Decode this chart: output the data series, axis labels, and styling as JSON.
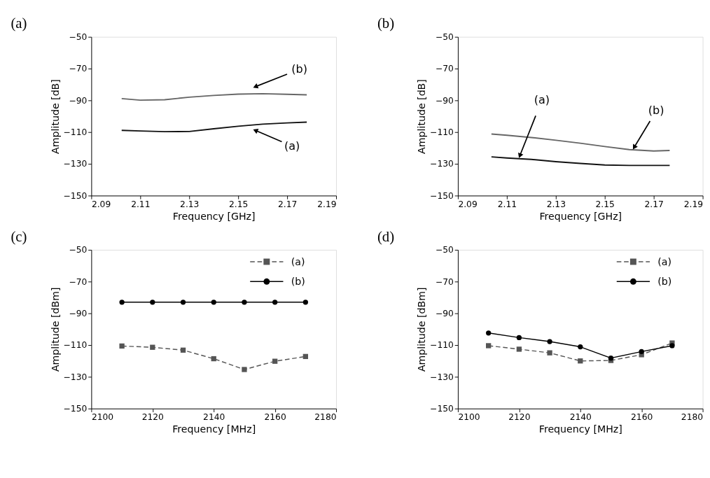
{
  "chart_data": [
    {
      "type": "line",
      "title": "(a)",
      "xlabel": "Frequency [GHz]",
      "ylabel": "Amplitude [dB]",
      "xlim": [
        2.09,
        2.19
      ],
      "ylim": [
        -150,
        -50
      ],
      "xticks": [
        2.09,
        2.11,
        2.13,
        2.15,
        2.17,
        2.19
      ],
      "yticks": [
        -150,
        -130,
        -110,
        -90,
        -70,
        -50
      ],
      "grid": false,
      "legend": false,
      "marker": "none",
      "series": [
        {
          "color": "#666666",
          "line_style": "solid",
          "x": [
            2.1024,
            2.11,
            2.12,
            2.13,
            2.14,
            2.15,
            2.16,
            2.17,
            2.178
          ],
          "values": [
            -88.9,
            -89.9,
            -89.6,
            -88,
            -86.9,
            -86.1,
            -85.8,
            -86.2,
            -86.5
          ]
        },
        {
          "color": "#111111",
          "line_style": "solid",
          "x": [
            2.1024,
            2.11,
            2.12,
            2.13,
            2.14,
            2.15,
            2.16,
            2.17,
            2.178
          ],
          "values": [
            -108.9,
            -109.3,
            -109.7,
            -109.6,
            -107.9,
            -106.3,
            -105,
            -104.2,
            -103.7
          ]
        }
      ],
      "annotations": [
        {
          "text": "(b)",
          "x": 2.157,
          "y": -81.4
        },
        {
          "text": "(a)",
          "x": 2.157,
          "y": -108.9
        }
      ]
    },
    {
      "type": "line",
      "title": "(b)",
      "xlabel": "Frequency [GHz]",
      "ylabel": "Amplitude [dB]",
      "xlim": [
        2.09,
        2.19
      ],
      "ylim": [
        -150,
        -50
      ],
      "xticks": [
        2.09,
        2.11,
        2.13,
        2.15,
        2.17,
        2.19
      ],
      "yticks": [
        -150,
        -130,
        -110,
        -90,
        -70,
        -50
      ],
      "grid": false,
      "legend": false,
      "marker": "none",
      "series": [
        {
          "color": "#666666",
          "line_style": "solid",
          "x": [
            2.1037,
            2.11,
            2.12,
            2.13,
            2.14,
            2.15,
            2.16,
            2.17,
            2.1765
          ],
          "values": [
            -111.2,
            -112,
            -113.4,
            -115.1,
            -117,
            -119.1,
            -121,
            -121.9,
            -121.6
          ]
        },
        {
          "color": "#111111",
          "line_style": "solid",
          "x": [
            2.1037,
            2.11,
            2.12,
            2.13,
            2.14,
            2.15,
            2.16,
            2.17,
            2.1765
          ],
          "values": [
            -125.6,
            -126.3,
            -127.2,
            -128.6,
            -129.7,
            -130.7,
            -131,
            -131,
            -131
          ]
        }
      ],
      "annotations": [
        {
          "text": "(a)",
          "x": 2.1153,
          "y": -124.9
        },
        {
          "text": "(b)",
          "x": 2.162,
          "y": -119.6
        }
      ]
    },
    {
      "type": "line",
      "title": "(c)",
      "xlabel": "Frequency [MHz]",
      "ylabel": "Amplitude [dBm]",
      "xlim": [
        2100,
        2180
      ],
      "ylim": [
        -150,
        -50
      ],
      "xticks": [
        2100,
        2120,
        2140,
        2160,
        2180
      ],
      "yticks": [
        -150,
        -130,
        -110,
        -90,
        -70,
        -50
      ],
      "grid": false,
      "legend": "top right",
      "series": [
        {
          "name": "(a)",
          "color": "#555555",
          "marker": "square",
          "line_style": "dashed",
          "x": [
            2110,
            2120,
            2130,
            2140,
            2150,
            2160,
            2170
          ],
          "values": [
            -110.6,
            -111.4,
            -113.2,
            -118.6,
            -125.4,
            -120.2,
            -117.2
          ]
        },
        {
          "name": "(b)",
          "color": "#000000",
          "marker": "circle",
          "line_style": "solid",
          "x": [
            2110,
            2120,
            2130,
            2140,
            2150,
            2160,
            2170
          ],
          "values": [
            -83,
            -83,
            -83,
            -83,
            -83,
            -83,
            -83
          ]
        }
      ]
    },
    {
      "type": "line",
      "title": "(d)",
      "xlabel": "Frequency [MHz]",
      "ylabel": "Amplitude [dBm]",
      "xlim": [
        2100,
        2180
      ],
      "ylim": [
        -150,
        -50
      ],
      "xticks": [
        2100,
        2120,
        2140,
        2160,
        2180
      ],
      "yticks": [
        -150,
        -130,
        -110,
        -90,
        -70,
        -50
      ],
      "grid": false,
      "legend": "top right",
      "series": [
        {
          "name": "(a)",
          "color": "#555555",
          "marker": "square",
          "line_style": "dashed",
          "x": [
            2110,
            2120,
            2130,
            2140,
            2150,
            2160,
            2170
          ],
          "values": [
            -110.4,
            -112.6,
            -114.9,
            -120,
            -119.7,
            -116.1,
            -108.7
          ]
        },
        {
          "name": "(b)",
          "color": "#000000",
          "marker": "circle",
          "line_style": "solid",
          "x": [
            2110,
            2120,
            2130,
            2140,
            2150,
            2160,
            2170
          ],
          "values": [
            -102.4,
            -105.3,
            -107.8,
            -111.1,
            -118.2,
            -114.1,
            -110.4
          ]
        }
      ]
    }
  ]
}
